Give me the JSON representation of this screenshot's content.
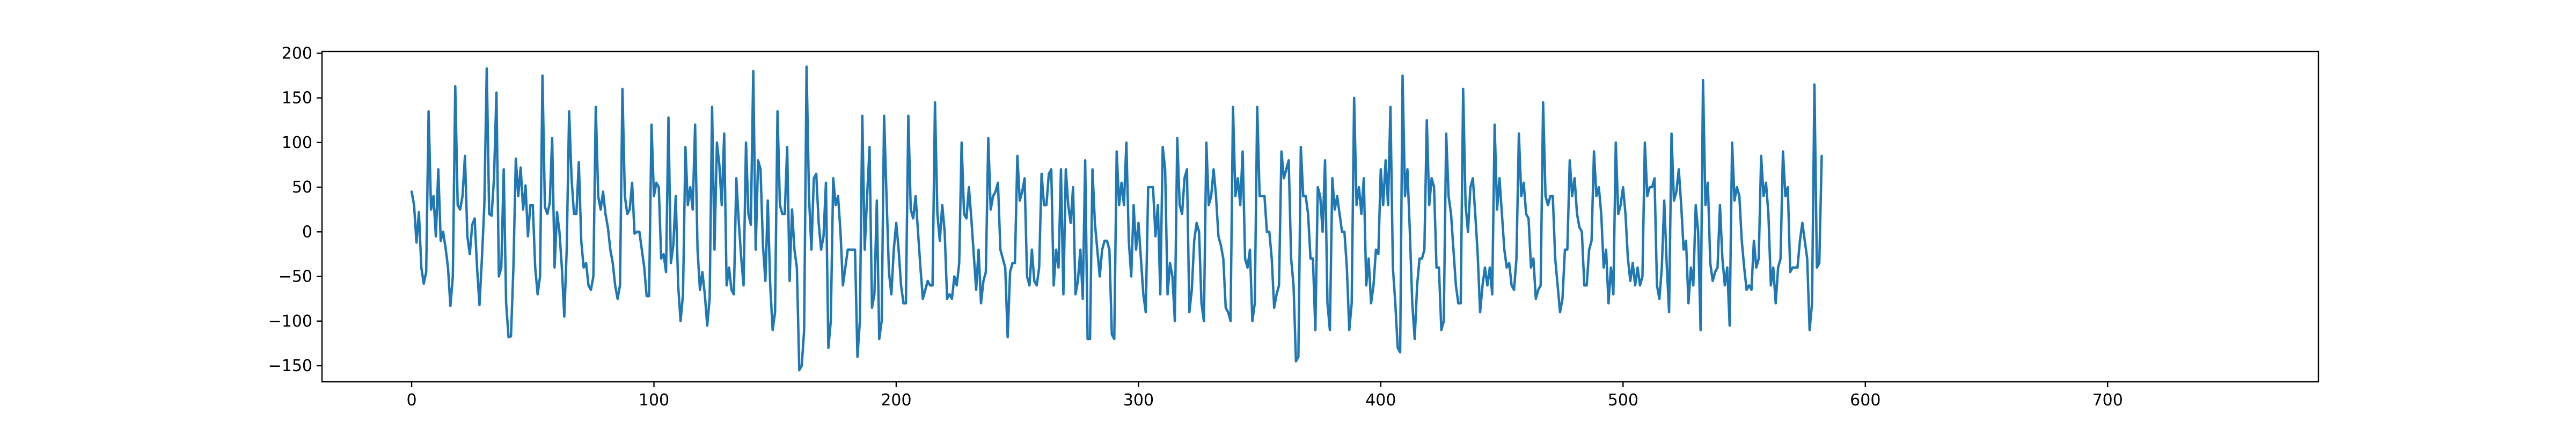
{
  "chart_data": {
    "type": "line",
    "title": "",
    "xlabel": "",
    "ylabel": "",
    "xlim": [
      -37,
      787
    ],
    "ylim": [
      -168,
      202
    ],
    "x_ticks": [
      0,
      100,
      200,
      300,
      400,
      500,
      600,
      700
    ],
    "y_ticks": [
      -150,
      -100,
      -50,
      0,
      50,
      100,
      150,
      200
    ],
    "grid": false,
    "legend": "none",
    "colors": {
      "series": "#1f77b4",
      "axes": "#000000",
      "background": "#ffffff"
    },
    "series": [
      {
        "values": [
          45,
          30,
          -12,
          22,
          -40,
          -58,
          -45,
          135,
          25,
          40,
          -5,
          70,
          -10,
          0,
          -18,
          -40,
          -83,
          -50,
          163,
          30,
          25,
          40,
          85,
          -5,
          -25,
          8,
          15,
          -40,
          -82,
          -30,
          30,
          183,
          20,
          18,
          60,
          156,
          -50,
          -40,
          70,
          -80,
          -118,
          -117,
          -40,
          82,
          40,
          72,
          25,
          52,
          -5,
          30,
          30,
          -40,
          -70,
          -50,
          175,
          28,
          20,
          32,
          105,
          -40,
          22,
          0,
          -40,
          -95,
          -20,
          135,
          60,
          20,
          20,
          78,
          -10,
          -40,
          -35,
          -60,
          -65,
          -50,
          140,
          40,
          25,
          45,
          20,
          5,
          -20,
          -35,
          -60,
          -75,
          -60,
          160,
          40,
          20,
          25,
          55,
          -2,
          0,
          0,
          -20,
          -40,
          -72,
          -72,
          120,
          40,
          55,
          50,
          -30,
          -25,
          -45,
          128,
          -35,
          -15,
          40,
          -60,
          -100,
          -70,
          95,
          30,
          50,
          25,
          120,
          -20,
          -65,
          -45,
          -70,
          -105,
          -75,
          140,
          -20,
          100,
          75,
          30,
          110,
          -60,
          -40,
          -65,
          -70,
          60,
          12,
          -28,
          -60,
          100,
          20,
          8,
          180,
          -20,
          80,
          70,
          -15,
          -55,
          35,
          -60,
          -110,
          -90,
          135,
          30,
          20,
          20,
          95,
          -55,
          25,
          -20,
          -40,
          -155,
          -150,
          -110,
          185,
          40,
          -20,
          60,
          65,
          10,
          -20,
          -5,
          55,
          -130,
          -100,
          60,
          30,
          40,
          0,
          -60,
          -40,
          -20,
          -20,
          -20,
          -20,
          -140,
          -100,
          130,
          -20,
          40,
          95,
          -85,
          -70,
          35,
          -120,
          -100,
          130,
          40,
          -45,
          -70,
          -20,
          10,
          -20,
          -60,
          -80,
          -80,
          130,
          25,
          15,
          40,
          0,
          -40,
          -75,
          -65,
          -55,
          -60,
          -60,
          145,
          20,
          -10,
          30,
          0,
          -75,
          -70,
          -75,
          -50,
          -60,
          -35,
          100,
          20,
          15,
          50,
          15,
          -25,
          -65,
          -20,
          -80,
          -55,
          -45,
          105,
          25,
          40,
          45,
          55,
          -20,
          -30,
          -40,
          -118,
          -45,
          -35,
          -35,
          85,
          35,
          45,
          60,
          -50,
          -60,
          -20,
          -55,
          -60,
          -40,
          65,
          30,
          30,
          65,
          70,
          -60,
          -20,
          -40,
          70,
          -70,
          70,
          30,
          10,
          50,
          -70,
          -55,
          -20,
          -75,
          80,
          -120,
          -120,
          70,
          10,
          -20,
          -50,
          -20,
          -10,
          -10,
          -20,
          -115,
          -120,
          90,
          30,
          55,
          30,
          100,
          -10,
          -50,
          30,
          -20,
          10,
          -30,
          -70,
          -90,
          50,
          50,
          50,
          -5,
          30,
          -70,
          95,
          70,
          -70,
          -35,
          -50,
          -100,
          105,
          30,
          20,
          60,
          70,
          -90,
          -65,
          -10,
          10,
          0,
          -80,
          -100,
          100,
          30,
          40,
          70,
          40,
          -5,
          -15,
          -30,
          -85,
          -90,
          -100,
          140,
          40,
          60,
          30,
          90,
          -30,
          -40,
          -20,
          -100,
          -80,
          140,
          40,
          40,
          40,
          0,
          0,
          -30,
          -85,
          -70,
          -60,
          90,
          60,
          70,
          80,
          -30,
          -60,
          -145,
          -140,
          95,
          40,
          40,
          20,
          -30,
          -30,
          -110,
          50,
          40,
          0,
          80,
          -80,
          -110,
          60,
          25,
          40,
          20,
          0,
          0,
          -40,
          -110,
          -80,
          150,
          30,
          50,
          20,
          60,
          -60,
          -30,
          -80,
          -60,
          -20,
          -25,
          70,
          30,
          80,
          30,
          140,
          -40,
          -80,
          -130,
          -135,
          175,
          40,
          70,
          0,
          -80,
          -120,
          -60,
          -30,
          -30,
          -20,
          125,
          30,
          60,
          50,
          -40,
          -40,
          -110,
          -100,
          110,
          40,
          20,
          -20,
          -60,
          -80,
          -80,
          160,
          30,
          0,
          50,
          60,
          20,
          -25,
          -90,
          -60,
          -40,
          -60,
          -40,
          -70,
          120,
          25,
          60,
          20,
          -20,
          -40,
          -35,
          -60,
          -65,
          -30,
          110,
          40,
          55,
          20,
          15,
          -40,
          -30,
          -75,
          -65,
          -60,
          145,
          40,
          30,
          40,
          40,
          -30,
          -60,
          -90,
          -75,
          -20,
          -20,
          80,
          40,
          60,
          20,
          5,
          0,
          -60,
          -60,
          -20,
          -10,
          90,
          40,
          50,
          20,
          -40,
          -20,
          -80,
          -40,
          -70,
          100,
          20,
          30,
          50,
          20,
          -30,
          -55,
          -35,
          -60,
          -40,
          -60,
          -50,
          100,
          40,
          50,
          50,
          60,
          -60,
          -75,
          -40,
          35,
          -35,
          -90,
          110,
          35,
          45,
          70,
          30,
          -20,
          -10,
          -80,
          -40,
          -60,
          30,
          0,
          -110,
          170,
          30,
          55,
          -35,
          -55,
          -45,
          -40,
          30,
          -30,
          -60,
          -40,
          -105,
          100,
          35,
          50,
          40,
          -10,
          -40,
          -65,
          -60,
          -65,
          -10,
          -40,
          -30,
          85,
          40,
          55,
          20,
          -60,
          -40,
          -80,
          -40,
          -30,
          90,
          40,
          50,
          -45,
          -40,
          -40,
          -40,
          -10,
          10,
          -10,
          -30,
          -110,
          -80,
          165,
          -40,
          -35,
          85
        ]
      }
    ]
  }
}
